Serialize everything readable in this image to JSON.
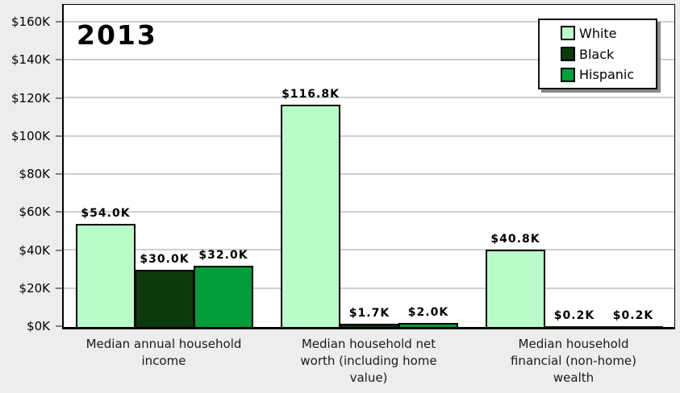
{
  "title": "2013",
  "colors": {
    "background": "#ededed",
    "plot_background": "#ffffff",
    "gridline": "#cfcfcf",
    "axis": "#000000"
  },
  "legend": {
    "position": "top-right",
    "items": [
      "White",
      "Black",
      "Hispanic"
    ]
  },
  "chart_data": {
    "type": "bar",
    "title": "2013",
    "categories": [
      {
        "label": "Median annual household income",
        "lines": [
          "Median annual household",
          "income"
        ]
      },
      {
        "label": "Median household net worth (including home value)",
        "lines": [
          "Median household net",
          "worth (including home",
          "value)"
        ]
      },
      {
        "label": "Median household financial (non-home) wealth",
        "lines": [
          "Median household",
          "financial (non-home)",
          "wealth"
        ]
      }
    ],
    "series": [
      {
        "name": "White",
        "color": "#b9fcc9",
        "values": [
          54.0,
          116.8,
          40.8
        ],
        "value_labels": [
          "$54.0K",
          "$116.8K",
          "$40.8K"
        ]
      },
      {
        "name": "Black",
        "color": "#0c3a0c",
        "values": [
          30.0,
          1.7,
          0.2
        ],
        "value_labels": [
          "$30.0K",
          "$1.7K",
          "$0.2K"
        ]
      },
      {
        "name": "Hispanic",
        "color": "#019e3a",
        "values": [
          32.0,
          2.0,
          0.2
        ],
        "value_labels": [
          "$32.0K",
          "$2.0K",
          "$0.2K"
        ]
      }
    ],
    "xlabel": "",
    "ylabel": "",
    "ylim": [
      0,
      170
    ],
    "grid": true,
    "legend_position": "top-right",
    "y_axis": {
      "tick_values": [
        0,
        20,
        40,
        60,
        80,
        100,
        120,
        140,
        160
      ],
      "tick_labels": [
        "$0K",
        "$20K",
        "$40K",
        "$60K",
        "$80K",
        "$100K",
        "$120K",
        "$140K",
        "$160K"
      ]
    }
  }
}
